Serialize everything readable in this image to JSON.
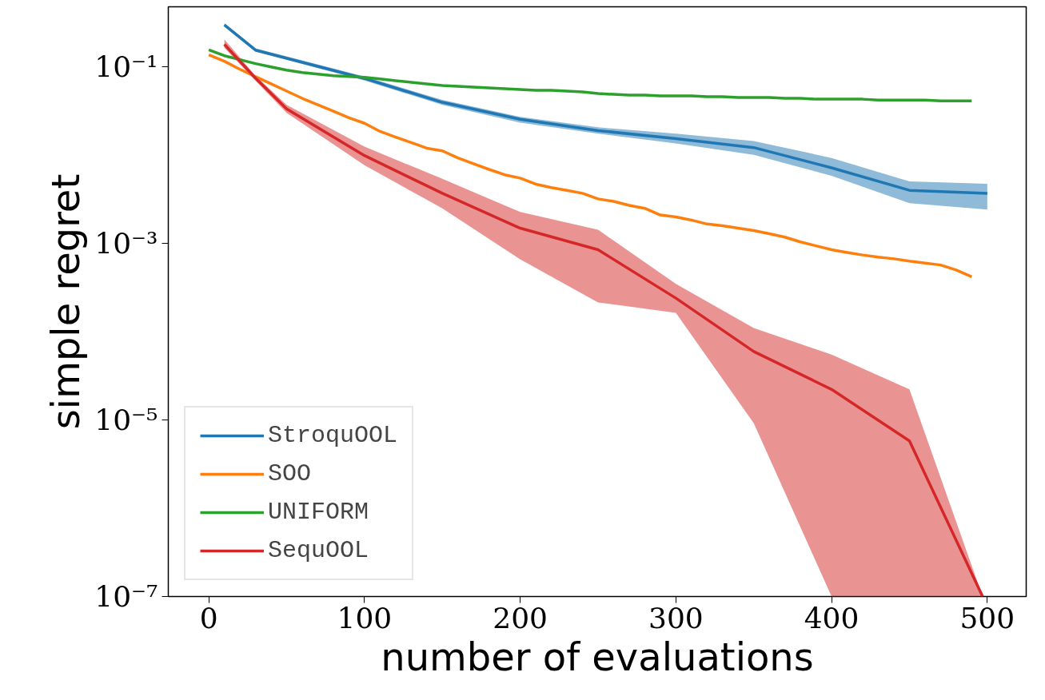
{
  "chart_data": {
    "type": "line",
    "xlabel": "number of evaluations",
    "ylabel": "simple regret",
    "log": "y",
    "grid": false,
    "legend": "bottom left",
    "xlim": [
      -26,
      525
    ],
    "xticks": [
      0,
      100,
      200,
      300,
      400,
      500
    ],
    "ylim": [
      1e-07,
      0.48
    ],
    "yticks": [
      {
        "value": 0.1,
        "label": "10⁻¹"
      },
      {
        "value": 0.001,
        "label": "10⁻³"
      },
      {
        "value": 1e-05,
        "label": "10⁻⁵"
      },
      {
        "value": 1e-07,
        "label": "10⁻⁷"
      }
    ],
    "series": [
      {
        "name": "StroquOOL",
        "color": "#1f77b4",
        "x": [
          10,
          30,
          100,
          150,
          200,
          250,
          300,
          350,
          400,
          450,
          500
        ],
        "values": [
          0.3,
          0.155,
          0.074,
          0.0397,
          0.0255,
          0.019,
          0.0154,
          0.0122,
          0.0072,
          0.004,
          0.0037
        ],
        "lower": [
          0.286,
          0.149,
          0.07,
          0.0372,
          0.0234,
          0.0175,
          0.0136,
          0.0101,
          0.00585,
          0.00286,
          0.00242
        ],
        "upper": [
          0.311,
          0.162,
          0.0777,
          0.0423,
          0.0272,
          0.0207,
          0.0175,
          0.0145,
          0.0093,
          0.00505,
          0.00474
        ]
      },
      {
        "name": "SOO",
        "color": "#ff7f0e",
        "x": [
          0,
          10,
          20,
          30,
          40,
          50,
          60,
          70,
          80,
          90,
          100,
          110,
          120,
          130,
          140,
          150,
          160,
          170,
          180,
          190,
          200,
          210,
          220,
          230,
          240,
          250,
          260,
          270,
          280,
          290,
          300,
          310,
          320,
          330,
          340,
          350,
          360,
          370,
          380,
          390,
          400,
          410,
          420,
          430,
          440,
          450,
          460,
          470,
          480,
          490
        ],
        "values": [
          0.137,
          0.116,
          0.094,
          0.0777,
          0.0643,
          0.0532,
          0.0441,
          0.0372,
          0.0315,
          0.0266,
          0.023,
          0.0186,
          0.016,
          0.0139,
          0.012,
          0.0112,
          0.0093,
          0.008,
          0.0069,
          0.006,
          0.0055,
          0.0047,
          0.0043,
          0.004,
          0.0037,
          0.0032,
          0.003,
          0.0027,
          0.0025,
          0.0021,
          0.002,
          0.00184,
          0.00166,
          0.00159,
          0.00149,
          0.0014,
          0.00129,
          0.00118,
          0.00104,
          0.00094,
          0.00085,
          0.00079,
          0.00074,
          0.0007,
          0.00067,
          0.00063,
          0.0006,
          0.00057,
          0.0005,
          0.00042
        ]
      },
      {
        "name": "UNIFORM",
        "color": "#2ca02c",
        "x": [
          0,
          10,
          20,
          30,
          40,
          50,
          60,
          70,
          80,
          90,
          100,
          110,
          120,
          130,
          140,
          150,
          160,
          170,
          180,
          190,
          200,
          210,
          220,
          230,
          240,
          250,
          260,
          270,
          280,
          290,
          300,
          310,
          320,
          330,
          340,
          350,
          360,
          370,
          380,
          390,
          400,
          410,
          420,
          430,
          440,
          450,
          460,
          470,
          480,
          490
        ],
        "values": [
          0.156,
          0.134,
          0.121,
          0.109,
          0.1,
          0.0919,
          0.0864,
          0.0828,
          0.0794,
          0.0777,
          0.0761,
          0.073,
          0.0699,
          0.0671,
          0.0643,
          0.0617,
          0.0604,
          0.0591,
          0.0579,
          0.0567,
          0.0555,
          0.0543,
          0.0543,
          0.0532,
          0.0521,
          0.05,
          0.0489,
          0.0479,
          0.0479,
          0.0469,
          0.0469,
          0.0469,
          0.0459,
          0.0459,
          0.045,
          0.045,
          0.045,
          0.0441,
          0.0441,
          0.0431,
          0.0431,
          0.0431,
          0.0431,
          0.0422,
          0.0422,
          0.0422,
          0.0422,
          0.0413,
          0.0413,
          0.0413
        ]
      },
      {
        "name": "SequOOL",
        "color": "#d62728",
        "x": [
          10,
          30,
          50,
          100,
          150,
          200,
          250,
          300,
          350,
          400,
          450,
          497
        ],
        "values": [
          0.18,
          0.0745,
          0.0335,
          0.0099,
          0.0037,
          0.00149,
          0.00085,
          0.00024,
          5.97e-05,
          2.22e-05,
          5.8e-06,
          1e-07
        ],
        "lower": [
          0.165,
          0.0699,
          0.0302,
          0.0077,
          0.0025,
          0.00066,
          0.000215,
          0.000164,
          9.2e-06,
          1e-07,
          1e-07,
          1e-07
        ],
        "upper": [
          0.205,
          0.0794,
          0.0372,
          0.0125,
          0.0054,
          0.00227,
          0.00143,
          0.000349,
          0.00011,
          5.5e-05,
          2.22e-05,
          1e-07
        ]
      }
    ]
  }
}
